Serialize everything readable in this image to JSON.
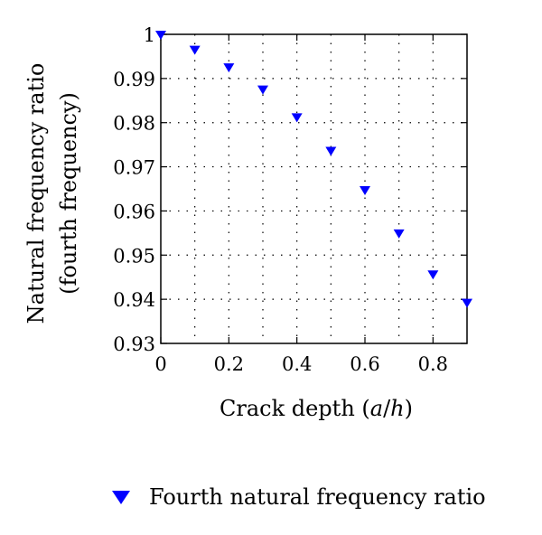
{
  "chart_data": {
    "type": "scatter",
    "xlabel": "Crack depth (a/h)",
    "xlabel_parts": {
      "before": "Crack depth (",
      "a": "a",
      "slash": "/",
      "h": "h",
      "after": ")"
    },
    "ylabel_lines": [
      "Natural frequency ratio",
      "(fourth frequency)"
    ],
    "xlim": [
      0,
      0.9
    ],
    "ylim": [
      0.93,
      1.0
    ],
    "xticks": [
      0,
      0.2,
      0.4,
      0.6,
      0.8
    ],
    "xtick_labels": [
      "0",
      "0.2",
      "0.4",
      "0.6",
      "0.8"
    ],
    "yticks": [
      0.93,
      0.94,
      0.95,
      0.96,
      0.97,
      0.98,
      0.99,
      1.0
    ],
    "ytick_labels": [
      "0.93",
      "0.94",
      "0.95",
      "0.96",
      "0.97",
      "0.98",
      "0.99",
      "1"
    ],
    "grid": "dotted",
    "legend_position": "bottom",
    "series": [
      {
        "name": "Fourth natural frequency ratio",
        "marker": "triangle-down",
        "color": "#0000ff",
        "x": [
          0,
          0.1,
          0.2,
          0.3,
          0.4,
          0.5,
          0.6,
          0.7,
          0.8,
          0.9
        ],
        "y": [
          1.0,
          0.9966,
          0.9926,
          0.9876,
          0.9813,
          0.9737,
          0.9648,
          0.955,
          0.9457,
          0.9393
        ]
      }
    ]
  }
}
